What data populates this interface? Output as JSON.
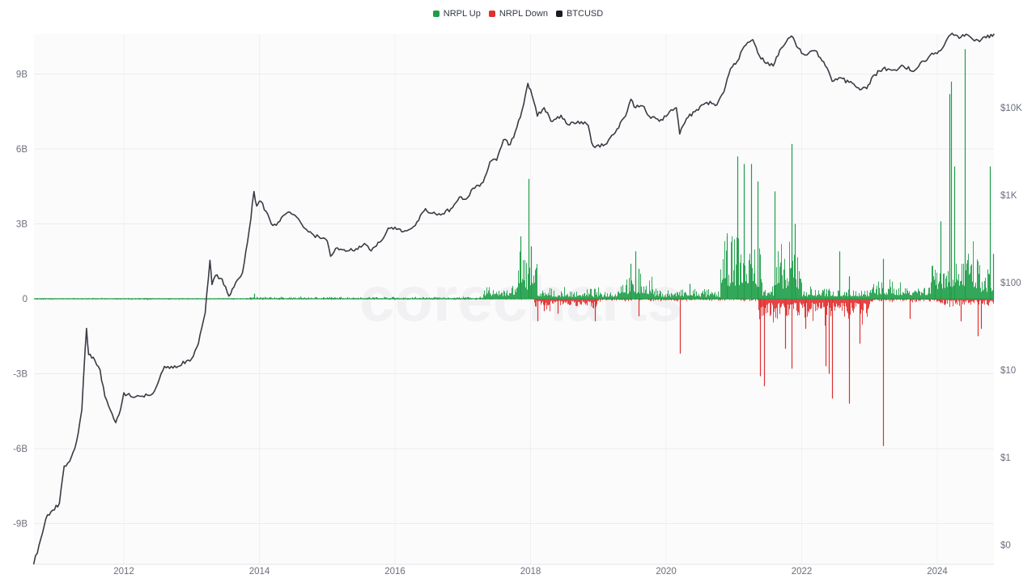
{
  "legend": {
    "items": [
      {
        "label": "NRPL Up",
        "color": "#1e9e48"
      },
      {
        "label": "NRPL Down",
        "color": "#e03030"
      },
      {
        "label": "BTCUSD",
        "color": "#1a1c22"
      }
    ]
  },
  "watermark": "corecharts",
  "colors": {
    "up": "#1e9e48",
    "down": "#e03030",
    "price": "#3a3c44",
    "grid": "#ececef",
    "zero_up": "#1e9e48",
    "plot_bg": "#fbfbfc"
  },
  "chart_data": {
    "type": "bar+line",
    "title": "",
    "series": [
      {
        "name": "NRPL Up",
        "type": "bar",
        "axis": "left"
      },
      {
        "name": "NRPL Down",
        "type": "bar",
        "axis": "left"
      },
      {
        "name": "BTCUSD",
        "type": "line",
        "axis": "right",
        "scale": "log"
      }
    ],
    "left_axis": {
      "ticks": [
        "9B",
        "6B",
        "3B",
        "0",
        "-3B",
        "-6B",
        "-9B"
      ],
      "values": [
        9,
        6,
        3,
        0,
        -3,
        -6,
        -9
      ],
      "unit": "B",
      "ylim": [
        -10.6,
        10.6
      ]
    },
    "right_axis": {
      "ticks": [
        "$10K",
        "$1K",
        "$100",
        "$10",
        "$1",
        "$0"
      ],
      "values": [
        10000,
        1000,
        100,
        10,
        1,
        0.1
      ],
      "scale": "log"
    },
    "x_axis": {
      "ticks": [
        "2012",
        "2014",
        "2016",
        "2018",
        "2020",
        "2022",
        "2024"
      ],
      "values": [
        2012,
        2014,
        2016,
        2018,
        2020,
        2022,
        2024
      ],
      "xlim": [
        2010.67,
        2024.84
      ]
    },
    "btc_price": [
      [
        2010.67,
        0.06
      ],
      [
        2010.75,
        0.1
      ],
      [
        2010.85,
        0.2
      ],
      [
        2010.95,
        0.25
      ],
      [
        2011.05,
        0.3
      ],
      [
        2011.12,
        0.8
      ],
      [
        2011.2,
        0.9
      ],
      [
        2011.3,
        1.5
      ],
      [
        2011.38,
        3.5
      ],
      [
        2011.43,
        18
      ],
      [
        2011.45,
        30
      ],
      [
        2011.48,
        15
      ],
      [
        2011.55,
        14
      ],
      [
        2011.65,
        10
      ],
      [
        2011.72,
        5
      ],
      [
        2011.8,
        3.5
      ],
      [
        2011.88,
        2.5
      ],
      [
        2011.95,
        3.5
      ],
      [
        2012.0,
        5.5
      ],
      [
        2012.1,
        5
      ],
      [
        2012.25,
        5
      ],
      [
        2012.4,
        5.2
      ],
      [
        2012.5,
        7
      ],
      [
        2012.6,
        11
      ],
      [
        2012.7,
        11
      ],
      [
        2012.8,
        11
      ],
      [
        2012.95,
        13
      ],
      [
        2013.0,
        13.5
      ],
      [
        2013.1,
        20
      ],
      [
        2013.2,
        45
      ],
      [
        2013.27,
        180
      ],
      [
        2013.3,
        95
      ],
      [
        2013.35,
        120
      ],
      [
        2013.45,
        110
      ],
      [
        2013.55,
        70
      ],
      [
        2013.65,
        100
      ],
      [
        2013.75,
        130
      ],
      [
        2013.85,
        400
      ],
      [
        2013.92,
        1100
      ],
      [
        2013.96,
        750
      ],
      [
        2014.02,
        850
      ],
      [
        2014.1,
        650
      ],
      [
        2014.2,
        450
      ],
      [
        2014.3,
        500
      ],
      [
        2014.4,
        620
      ],
      [
        2014.5,
        600
      ],
      [
        2014.6,
        500
      ],
      [
        2014.7,
        400
      ],
      [
        2014.8,
        350
      ],
      [
        2014.9,
        320
      ],
      [
        2015.0,
        300
      ],
      [
        2015.05,
        200
      ],
      [
        2015.15,
        250
      ],
      [
        2015.3,
        230
      ],
      [
        2015.45,
        240
      ],
      [
        2015.55,
        280
      ],
      [
        2015.65,
        230
      ],
      [
        2015.8,
        300
      ],
      [
        2015.9,
        420
      ],
      [
        2016.0,
        430
      ],
      [
        2016.1,
        380
      ],
      [
        2016.3,
        450
      ],
      [
        2016.45,
        700
      ],
      [
        2016.55,
        620
      ],
      [
        2016.7,
        610
      ],
      [
        2016.85,
        720
      ],
      [
        2016.95,
        950
      ],
      [
        2017.05,
        900
      ],
      [
        2017.15,
        1200
      ],
      [
        2017.3,
        1400
      ],
      [
        2017.4,
        2400
      ],
      [
        2017.5,
        2500
      ],
      [
        2017.6,
        4300
      ],
      [
        2017.7,
        3800
      ],
      [
        2017.8,
        6000
      ],
      [
        2017.9,
        11000
      ],
      [
        2017.96,
        19000
      ],
      [
        2018.02,
        14000
      ],
      [
        2018.1,
        8000
      ],
      [
        2018.2,
        10000
      ],
      [
        2018.3,
        7000
      ],
      [
        2018.45,
        8200
      ],
      [
        2018.55,
        6400
      ],
      [
        2018.7,
        7000
      ],
      [
        2018.85,
        6300
      ],
      [
        2018.9,
        4000
      ],
      [
        2018.95,
        3500
      ],
      [
        2019.1,
        3800
      ],
      [
        2019.25,
        5200
      ],
      [
        2019.4,
        8000
      ],
      [
        2019.48,
        12500
      ],
      [
        2019.55,
        10000
      ],
      [
        2019.65,
        10500
      ],
      [
        2019.75,
        8000
      ],
      [
        2019.85,
        7500
      ],
      [
        2019.95,
        7200
      ],
      [
        2020.05,
        9000
      ],
      [
        2020.15,
        10000
      ],
      [
        2020.2,
        5000
      ],
      [
        2020.3,
        7500
      ],
      [
        2020.45,
        9500
      ],
      [
        2020.6,
        11500
      ],
      [
        2020.75,
        10800
      ],
      [
        2020.85,
        15000
      ],
      [
        2020.95,
        28000
      ],
      [
        2021.05,
        34000
      ],
      [
        2021.15,
        50000
      ],
      [
        2021.28,
        60000
      ],
      [
        2021.4,
        36000
      ],
      [
        2021.5,
        33000
      ],
      [
        2021.58,
        30000
      ],
      [
        2021.7,
        48000
      ],
      [
        2021.85,
        66000
      ],
      [
        2021.95,
        48000
      ],
      [
        2022.05,
        40000
      ],
      [
        2022.2,
        45000
      ],
      [
        2022.35,
        30000
      ],
      [
        2022.45,
        20000
      ],
      [
        2022.55,
        22000
      ],
      [
        2022.7,
        19500
      ],
      [
        2022.86,
        16000
      ],
      [
        2022.96,
        16500
      ],
      [
        2023.05,
        23000
      ],
      [
        2023.2,
        28000
      ],
      [
        2023.35,
        27000
      ],
      [
        2023.5,
        30000
      ],
      [
        2023.65,
        26000
      ],
      [
        2023.8,
        34000
      ],
      [
        2023.92,
        42000
      ],
      [
        2024.05,
        45000
      ],
      [
        2024.15,
        62000
      ],
      [
        2024.22,
        71000
      ],
      [
        2024.35,
        64000
      ],
      [
        2024.45,
        68000
      ],
      [
        2024.55,
        58000
      ],
      [
        2024.65,
        60000
      ],
      [
        2024.72,
        63000
      ],
      [
        2024.84,
        70000
      ]
    ],
    "nrpl_spikes_up": [
      [
        2013.92,
        0.2
      ],
      [
        2017.85,
        2.5
      ],
      [
        2017.97,
        4.8
      ],
      [
        2018.0,
        2.1
      ],
      [
        2019.48,
        1.4
      ],
      [
        2019.55,
        1.9
      ],
      [
        2019.6,
        1.2
      ],
      [
        2020.35,
        0.6
      ],
      [
        2020.9,
        2.5
      ],
      [
        2021.05,
        5.7
      ],
      [
        2021.15,
        5.4
      ],
      [
        2021.25,
        5.4
      ],
      [
        2021.35,
        4.7
      ],
      [
        2021.6,
        4.3
      ],
      [
        2021.85,
        6.2
      ],
      [
        2021.9,
        3.0
      ],
      [
        2022.55,
        1.9
      ],
      [
        2022.7,
        0.9
      ],
      [
        2023.2,
        1.6
      ],
      [
        2023.97,
        0.8
      ],
      [
        2024.05,
        3.1
      ],
      [
        2024.18,
        8.2
      ],
      [
        2024.2,
        8.7
      ],
      [
        2024.25,
        5.3
      ],
      [
        2024.4,
        10.0
      ],
      [
        2024.78,
        5.3
      ],
      [
        2024.82,
        1.8
      ]
    ],
    "nrpl_spikes_down": [
      [
        2018.1,
        -0.9
      ],
      [
        2018.2,
        -0.5
      ],
      [
        2018.4,
        -0.6
      ],
      [
        2018.95,
        -0.9
      ],
      [
        2019.6,
        -0.7
      ],
      [
        2020.2,
        -2.2
      ],
      [
        2021.38,
        -3.1
      ],
      [
        2021.45,
        -3.5
      ],
      [
        2021.75,
        -2.0
      ],
      [
        2021.85,
        -2.8
      ],
      [
        2022.05,
        -1.2
      ],
      [
        2022.35,
        -2.7
      ],
      [
        2022.4,
        -3.0
      ],
      [
        2022.45,
        -4.0
      ],
      [
        2022.7,
        -4.2
      ],
      [
        2022.85,
        -1.8
      ],
      [
        2023.2,
        -5.9
      ],
      [
        2023.6,
        -0.8
      ],
      [
        2024.35,
        -0.9
      ],
      [
        2024.6,
        -1.5
      ],
      [
        2024.65,
        -1.2
      ]
    ]
  }
}
